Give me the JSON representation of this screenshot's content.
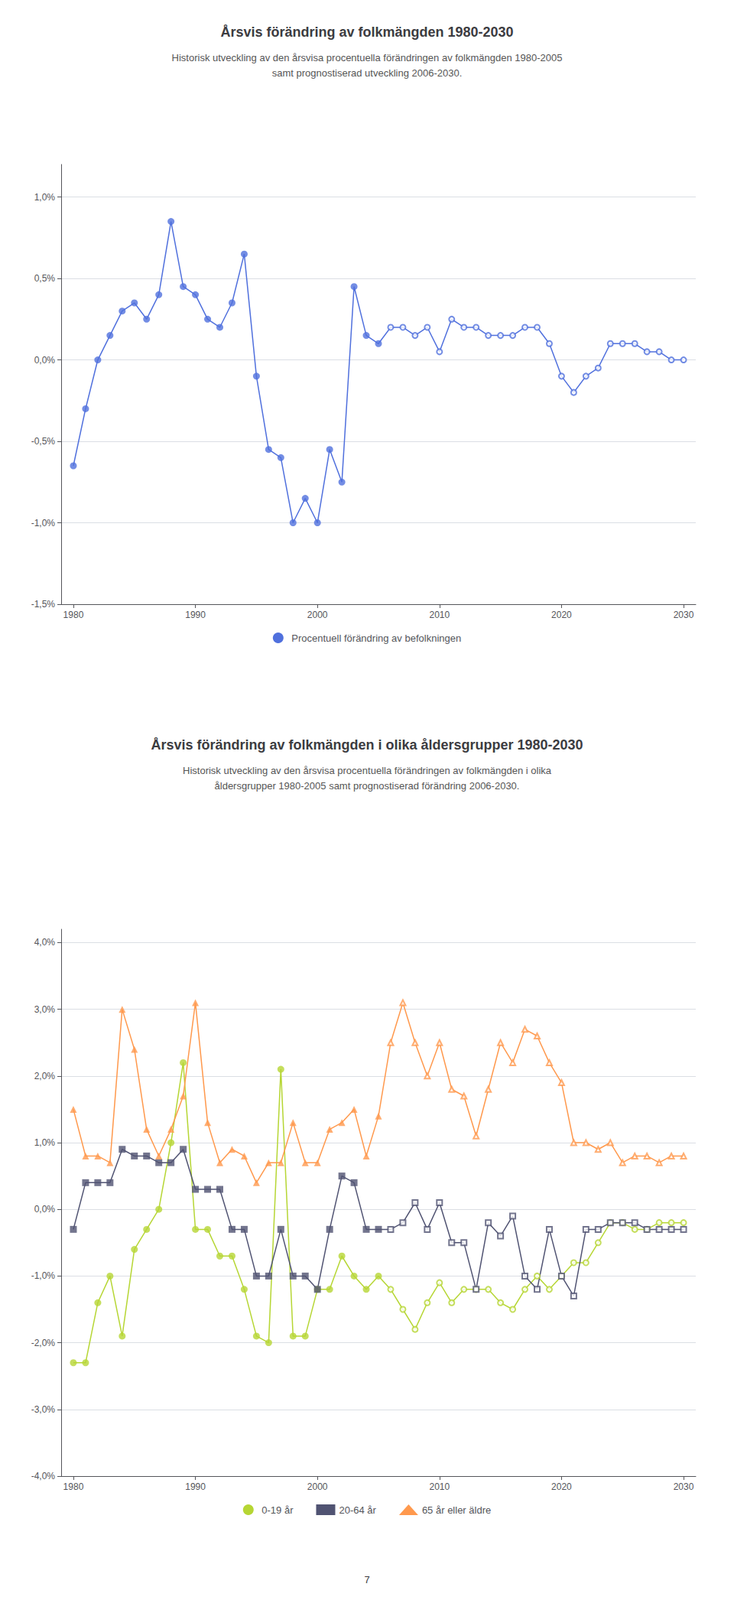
{
  "chart_data": [
    {
      "type": "line",
      "title": "Årsvis förändring av folkmängden 1980-2030",
      "subtitle": "Historisk utveckling av den årsvisa procentuella förändringen av folkmängden 1980-2005\nsamt prognostiserad utveckling 2006-2030.",
      "series": [
        {
          "name": "Procentuell förändring av befolkningen",
          "marker": "circle",
          "x": [
            1980,
            1981,
            1982,
            1983,
            1984,
            1985,
            1986,
            1987,
            1988,
            1989,
            1990,
            1991,
            1992,
            1993,
            1994,
            1995,
            1996,
            1997,
            1998,
            1999,
            2000,
            2001,
            2002,
            2003,
            2004,
            2005
          ],
          "values": [
            -0.0065,
            -0.003,
            0.0,
            0.0015,
            0.003,
            0.0035,
            0.0025,
            0.004,
            0.0085,
            0.0045,
            0.004,
            0.0025,
            0.002,
            0.0035,
            0.0065,
            -0.001,
            -0.0055,
            -0.006,
            -0.01,
            -0.0085,
            -0.01,
            -0.0055,
            -0.0075,
            0.0045,
            0.0015,
            0.001
          ]
        },
        {
          "name": "Procentuell förändring av befolkningen",
          "marker": "open_circle",
          "x": [
            2006,
            2007,
            2008,
            2009,
            2010,
            2011,
            2012,
            2013,
            2014,
            2015,
            2016,
            2017,
            2018,
            2019,
            2020,
            2021,
            2022,
            2023,
            2024,
            2025,
            2026,
            2027,
            2028,
            2029,
            2030
          ],
          "values": [
            0.002,
            0.002,
            0.0015,
            0.002,
            0.0005,
            0.0025,
            0.002,
            0.002,
            0.0015,
            0.0015,
            0.0015,
            0.002,
            0.002,
            0.001,
            -0.001,
            -0.002,
            -0.001,
            -0.0005,
            0.001,
            0.001,
            0.001,
            0.0005,
            0.0005,
            0.0,
            0.0
          ]
        }
      ],
      "xlim": [
        1979,
        2031
      ],
      "xticks": [
        1980,
        1990,
        2000,
        2010,
        2020,
        2030
      ],
      "ylim": [
        -0.015,
        0.012
      ],
      "yticks": [
        {
          "value": -0.015,
          "label": "-1,5%"
        },
        {
          "value": -0.01,
          "label": "-1,0%"
        },
        {
          "value": -0.005,
          "label": "-0,5%"
        },
        {
          "value": 0.0,
          "label": "0,0%"
        },
        {
          "value": 0.005,
          "label": "0,5%"
        },
        {
          "value": 0.01,
          "label": "1,0%"
        }
      ],
      "grid": true,
      "legend": "bottom"
    },
    {
      "type": "line",
      "title": "Årsvis förändring av folkmängden i olika åldersgrupper 1980-2030",
      "subtitle": "Historisk utveckling av den årsvisa procentuella förändringen av folkmängden i olika\nåldersgrupper 1980-2005 samt prognostiserad förändring 2006-2030.",
      "series": [
        {
          "name": "0-19 år",
          "marker": "circle",
          "x": [
            1980,
            1981,
            1982,
            1983,
            1984,
            1985,
            1986,
            1987,
            1988,
            1989,
            1990,
            1991,
            1992,
            1993,
            1994,
            1995,
            1996,
            1997,
            1998,
            1999,
            2000,
            2001,
            2002,
            2003,
            2004,
            2005
          ],
          "values": [
            -0.023,
            -0.023,
            -0.014,
            -0.01,
            -0.019,
            -0.006,
            -0.003,
            0.0,
            0.01,
            0.022,
            -0.003,
            -0.003,
            -0.007,
            -0.007,
            -0.012,
            -0.019,
            -0.02,
            0.021,
            -0.019,
            -0.019,
            -0.012,
            -0.012,
            -0.007,
            -0.01,
            -0.012,
            -0.01
          ]
        },
        {
          "name": "0-19 år",
          "marker": "open_circle",
          "x": [
            2006,
            2007,
            2008,
            2009,
            2010,
            2011,
            2012,
            2013,
            2014,
            2015,
            2016,
            2017,
            2018,
            2019,
            2020,
            2021,
            2022,
            2023,
            2024,
            2025,
            2026,
            2027,
            2028,
            2029,
            2030
          ],
          "values": [
            -0.012,
            -0.015,
            -0.018,
            -0.014,
            -0.011,
            -0.014,
            -0.012,
            -0.012,
            -0.012,
            -0.014,
            -0.015,
            -0.012,
            -0.01,
            -0.012,
            -0.01,
            -0.008,
            -0.008,
            -0.005,
            -0.002,
            -0.002,
            -0.003,
            -0.003,
            -0.002,
            -0.002,
            -0.002
          ]
        },
        {
          "name": "20-64 år",
          "marker": "square",
          "x": [
            1980,
            1981,
            1982,
            1983,
            1984,
            1985,
            1986,
            1987,
            1988,
            1989,
            1990,
            1991,
            1992,
            1993,
            1994,
            1995,
            1996,
            1997,
            1998,
            1999,
            2000,
            2001,
            2002,
            2003,
            2004,
            2005
          ],
          "values": [
            -0.003,
            0.004,
            0.004,
            0.004,
            0.009,
            0.008,
            0.008,
            0.007,
            0.007,
            0.009,
            0.003,
            0.003,
            0.003,
            -0.003,
            -0.003,
            -0.01,
            -0.01,
            -0.003,
            -0.01,
            -0.01,
            -0.012,
            -0.003,
            0.005,
            0.004,
            -0.003,
            -0.003
          ]
        },
        {
          "name": "20-64 år",
          "marker": "open_square",
          "x": [
            2006,
            2007,
            2008,
            2009,
            2010,
            2011,
            2012,
            2013,
            2014,
            2015,
            2016,
            2017,
            2018,
            2019,
            2020,
            2021,
            2022,
            2023,
            2024,
            2025,
            2026,
            2027,
            2028,
            2029,
            2030
          ],
          "values": [
            -0.003,
            -0.002,
            0.001,
            -0.003,
            0.001,
            -0.005,
            -0.005,
            -0.012,
            -0.002,
            -0.004,
            -0.001,
            -0.01,
            -0.012,
            -0.003,
            -0.01,
            -0.013,
            -0.003,
            -0.003,
            -0.002,
            -0.002,
            -0.002,
            -0.003,
            -0.003,
            -0.003,
            -0.003
          ]
        },
        {
          "name": "65 år eller äldre",
          "marker": "triangle",
          "x": [
            1980,
            1981,
            1982,
            1983,
            1984,
            1985,
            1986,
            1987,
            1988,
            1989,
            1990,
            1991,
            1992,
            1993,
            1994,
            1995,
            1996,
            1997,
            1998,
            1999,
            2000,
            2001,
            2002,
            2003,
            2004,
            2005
          ],
          "values": [
            0.015,
            0.008,
            0.008,
            0.007,
            0.03,
            0.024,
            0.012,
            0.008,
            0.012,
            0.017,
            0.031,
            0.013,
            0.007,
            0.009,
            0.008,
            0.004,
            0.007,
            0.007,
            0.013,
            0.007,
            0.007,
            0.012,
            0.013,
            0.015,
            0.008,
            0.014
          ]
        },
        {
          "name": "65 år eller äldre",
          "marker": "open_triangle",
          "x": [
            2006,
            2007,
            2008,
            2009,
            2010,
            2011,
            2012,
            2013,
            2014,
            2015,
            2016,
            2017,
            2018,
            2019,
            2020,
            2021,
            2022,
            2023,
            2024,
            2025,
            2026,
            2027,
            2028,
            2029,
            2030
          ],
          "values": [
            0.025,
            0.031,
            0.025,
            0.02,
            0.025,
            0.018,
            0.017,
            0.011,
            0.018,
            0.025,
            0.022,
            0.027,
            0.026,
            0.022,
            0.019,
            0.01,
            0.01,
            0.009,
            0.01,
            0.007,
            0.008,
            0.008,
            0.007,
            0.008,
            0.008
          ]
        }
      ],
      "xlim": [
        1979,
        2031
      ],
      "xticks": [
        1980,
        1990,
        2000,
        2010,
        2020,
        2030
      ],
      "ylim": [
        -0.04,
        0.042
      ],
      "yticks": [
        {
          "value": -0.04,
          "label": "-4,0%"
        },
        {
          "value": -0.03,
          "label": "-3,0%"
        },
        {
          "value": -0.02,
          "label": "-2,0%"
        },
        {
          "value": -0.01,
          "label": "-1,0%"
        },
        {
          "value": 0.0,
          "label": "0,0%"
        },
        {
          "value": 0.01,
          "label": "1,0%"
        },
        {
          "value": 0.02,
          "label": "2,0%"
        },
        {
          "value": 0.03,
          "label": "3,0%"
        },
        {
          "value": 0.04,
          "label": "4,0%"
        }
      ],
      "grid": true,
      "legend": "bottom",
      "annotations": [
        "7"
      ]
    }
  ]
}
